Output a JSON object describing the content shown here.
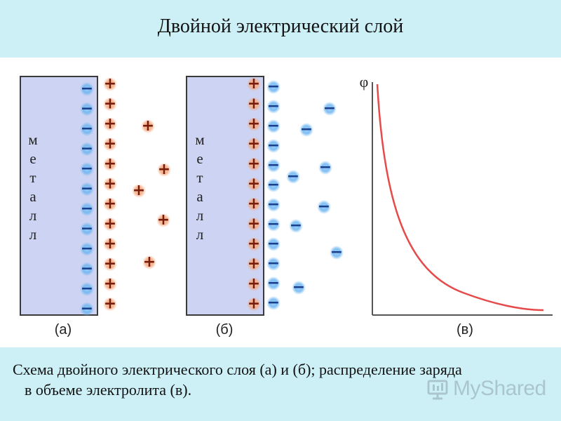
{
  "title": "Двойной электрический слой",
  "panels": {
    "a": {
      "metal_label": [
        "м",
        "е",
        "т",
        "а",
        "л",
        "л"
      ],
      "label": "(а)"
    },
    "b": {
      "metal_label": [
        "м",
        "е",
        "т",
        "а",
        "л",
        "л"
      ],
      "label": "(б)"
    },
    "c": {
      "y_axis_label": "φ",
      "label": "(в)"
    }
  },
  "signs": {
    "minus": "−",
    "plus": "+"
  },
  "caption": {
    "line1": "Схема двойного электрического слоя (а) и (б); распределение заряда",
    "line2": "в объеме электролита (в)."
  },
  "watermark": {
    "text": "MyShared"
  },
  "colors": {
    "metal_fill": "#cdd3f2",
    "negative_ion": "#4d9fe3",
    "positive_ion": "#e88a5a",
    "potential_curve": "#e64a4a"
  }
}
